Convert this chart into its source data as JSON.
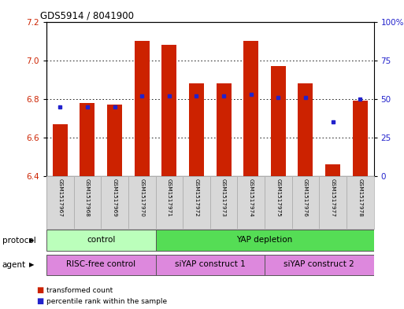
{
  "title": "GDS5914 / 8041900",
  "samples": [
    "GSM1517967",
    "GSM1517968",
    "GSM1517969",
    "GSM1517970",
    "GSM1517971",
    "GSM1517972",
    "GSM1517973",
    "GSM1517974",
    "GSM1517975",
    "GSM1517976",
    "GSM1517977",
    "GSM1517978"
  ],
  "transformed_count": [
    6.67,
    6.78,
    6.77,
    7.1,
    7.08,
    6.88,
    6.88,
    7.1,
    6.97,
    6.88,
    6.46,
    6.79
  ],
  "percentile_rank": [
    45,
    45,
    45,
    52,
    52,
    52,
    52,
    53,
    51,
    51,
    35,
    50
  ],
  "ylim_left": [
    6.4,
    7.2
  ],
  "ylim_right": [
    0,
    100
  ],
  "yticks_left": [
    6.4,
    6.6,
    6.8,
    7.0,
    7.2
  ],
  "yticks_right": [
    0,
    25,
    50,
    75,
    100
  ],
  "bar_color": "#cc2200",
  "dot_color": "#2222cc",
  "bg_color": "#d8d8d8",
  "protocol_groups": [
    {
      "label": "control",
      "start": 0,
      "end": 4,
      "color": "#bbffbb"
    },
    {
      "label": "YAP depletion",
      "start": 4,
      "end": 12,
      "color": "#55dd55"
    }
  ],
  "agent_groups": [
    {
      "label": "RISC-free control",
      "start": 0,
      "end": 4,
      "color": "#dd88dd"
    },
    {
      "label": "siYAP construct 1",
      "start": 4,
      "end": 8,
      "color": "#dd88dd"
    },
    {
      "label": "siYAP construct 2",
      "start": 8,
      "end": 12,
      "color": "#dd88dd"
    }
  ]
}
